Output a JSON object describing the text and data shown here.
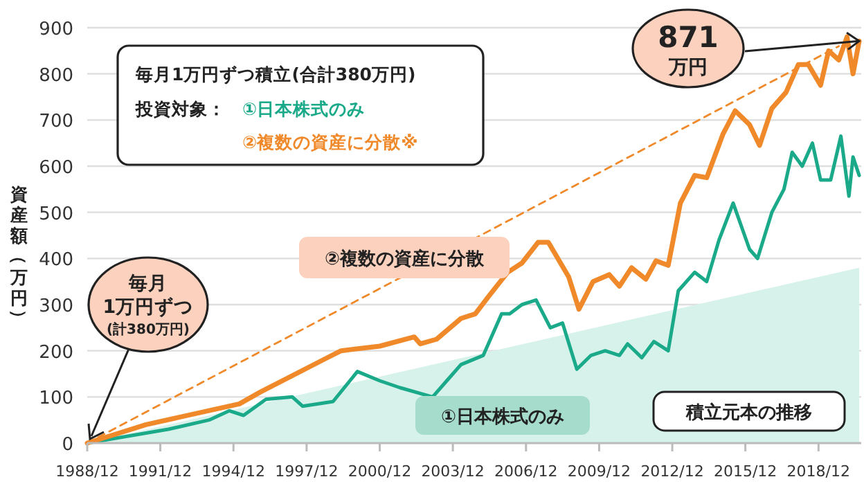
{
  "chart_data": {
    "type": "line",
    "ylabel": "資産額（万円）",
    "xlim": [
      "1988-12",
      "2020-09"
    ],
    "xticks": [
      {
        "value": "1988-12",
        "label": "1988/12"
      },
      {
        "value": "1991-12",
        "label": "1991/12"
      },
      {
        "value": "1994-12",
        "label": "1994/12"
      },
      {
        "value": "1997-12",
        "label": "1997/12"
      },
      {
        "value": "2000-12",
        "label": "2000/12"
      },
      {
        "value": "2003-12",
        "label": "2003/12"
      },
      {
        "value": "2006-12",
        "label": "2006/12"
      },
      {
        "value": "2009-12",
        "label": "2009/12"
      },
      {
        "value": "2012-12",
        "label": "2012/12"
      },
      {
        "value": "2015-12",
        "label": "2015/12"
      },
      {
        "value": "2018-12",
        "label": "2018/12"
      }
    ],
    "ylim": [
      0,
      900
    ],
    "yticks": [
      0,
      100,
      200,
      300,
      400,
      500,
      600,
      700,
      800,
      900
    ],
    "grid": "y",
    "legend": false,
    "series": [
      {
        "name": "積立元本の推移",
        "type": "area",
        "color": "#d7f2ea",
        "x": [
          "1988-12",
          "2020-08"
        ],
        "values": [
          0,
          380
        ]
      },
      {
        "name": "①日本株式のみ",
        "color": "#1aaa8a",
        "x": [
          "1988-12",
          "1992-04",
          "1993-12",
          "1994-10",
          "1995-05",
          "1996-04",
          "1997-05",
          "1997-10",
          "1999-01",
          "2000-01",
          "2000-12",
          "2001-10",
          "2003-02",
          "2003-09",
          "2004-04",
          "2005-03",
          "2005-12",
          "2006-04",
          "2006-10",
          "2007-05",
          "2007-12",
          "2008-06",
          "2009-01",
          "2009-08",
          "2010-03",
          "2010-10",
          "2011-02",
          "2011-09",
          "2012-03",
          "2012-10",
          "2013-03",
          "2013-11",
          "2014-05",
          "2014-11",
          "2015-06",
          "2016-02",
          "2016-06",
          "2017-01",
          "2017-07",
          "2017-11",
          "2018-04",
          "2018-09",
          "2019-01",
          "2019-06",
          "2019-11",
          "2020-03",
          "2020-05",
          "2020-08"
        ],
        "values": [
          0,
          30,
          50,
          70,
          60,
          95,
          100,
          80,
          90,
          155,
          135,
          120,
          100,
          135,
          170,
          190,
          280,
          280,
          300,
          310,
          250,
          260,
          160,
          190,
          200,
          190,
          215,
          185,
          220,
          200,
          330,
          370,
          350,
          440,
          520,
          420,
          400,
          500,
          550,
          630,
          600,
          650,
          570,
          570,
          665,
          535,
          620,
          580
        ]
      },
      {
        "name": "②複数の資産に分散",
        "color": "#f0892a",
        "x": [
          "1988-12",
          "1991-05",
          "1995-03",
          "1996-01",
          "1998-08",
          "1999-05",
          "2000-12",
          "2002-05",
          "2002-08",
          "2003-04",
          "2004-04",
          "2004-11",
          "2005-06",
          "2006-03",
          "2006-10",
          "2007-06",
          "2007-11",
          "2008-09",
          "2009-02",
          "2009-09",
          "2010-05",
          "2010-10",
          "2011-04",
          "2011-11",
          "2012-04",
          "2012-10",
          "2013-04",
          "2013-11",
          "2014-05",
          "2015-01",
          "2015-07",
          "2016-02",
          "2016-07",
          "2017-01",
          "2017-08",
          "2018-02",
          "2018-07",
          "2019-01",
          "2019-05",
          "2019-10",
          "2020-02",
          "2020-05",
          "2020-08"
        ],
        "values": [
          0,
          40,
          85,
          110,
          180,
          200,
          210,
          230,
          215,
          225,
          270,
          280,
          320,
          370,
          390,
          435,
          435,
          360,
          290,
          350,
          365,
          340,
          380,
          355,
          395,
          385,
          520,
          580,
          575,
          670,
          720,
          690,
          645,
          725,
          760,
          820,
          820,
          775,
          850,
          830,
          880,
          800,
          871
        ]
      },
      {
        "type": "line",
        "line_style": "dashed",
        "color": "#f0892a",
        "x": [
          "1988-12",
          "2019-10"
        ],
        "values": [
          0,
          860
        ]
      }
    ],
    "annotations": [
      "毎月1万円ずつ積立(合計380万円)",
      "投資対象：",
      "①日本株式のみ",
      "②複数の資産に分散※",
      {
        "text": "毎月\n1万円ずつ\n(計380万円)",
        "x": "1988-12",
        "y": 0
      },
      {
        "text": "871\n万円",
        "x": "2020-08",
        "y": 871
      }
    ]
  }
}
